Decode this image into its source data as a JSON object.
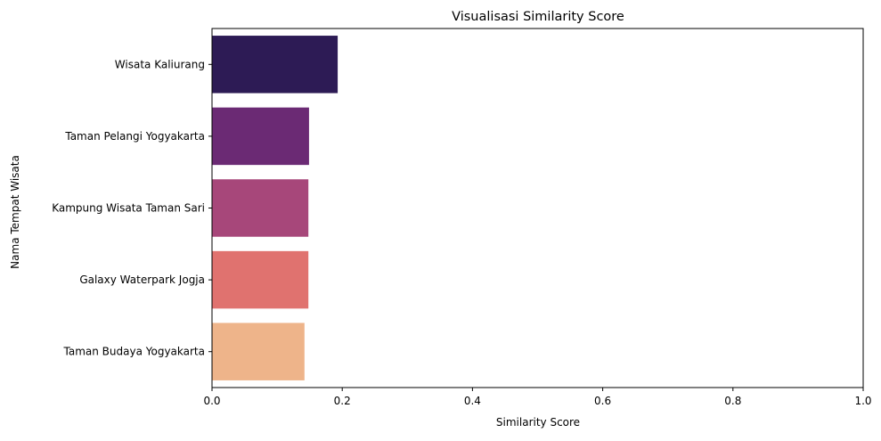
{
  "chart_data": {
    "type": "bar",
    "orientation": "horizontal",
    "title": "Visualisasi Similarity Score",
    "xlabel": "Similarity Score",
    "ylabel": "Nama Tempat Wisata",
    "xlim": [
      0,
      1.0
    ],
    "xticks": [
      "0.0",
      "0.2",
      "0.4",
      "0.6",
      "0.8",
      "1.0"
    ],
    "grid": false,
    "legend": "none",
    "categories": [
      "Wisata Kaliurang",
      "Taman Pelangi Yogyakarta",
      "Kampung Wisata Taman Sari",
      "Galaxy Waterpark Jogja",
      "Taman Budaya Yogyakarta"
    ],
    "values": [
      0.193,
      0.149,
      0.148,
      0.148,
      0.142
    ],
    "colors": [
      "#2d1b55",
      "#6b2a74",
      "#a7477a",
      "#e0726f",
      "#eeb48a"
    ]
  }
}
